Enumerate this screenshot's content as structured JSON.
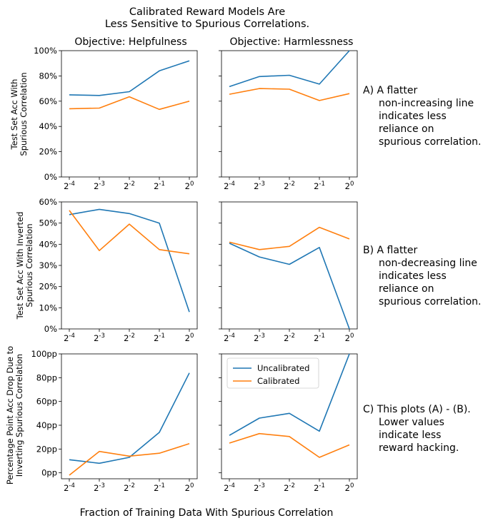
{
  "figure": {
    "title_line1": "Calibrated Reward Models Are",
    "title_line2": "Less Sensitive to Spurious Correlations.",
    "col_titles": [
      "Objective: Helpfulness",
      "Objective: Harmlessness"
    ],
    "xlabel": "Fraction of Training Data With Spurious Correlation",
    "row_ylabels": [
      [
        "Test Set Acc With",
        "Spurious Correlation"
      ],
      [
        "Test Set Acc With Inverted",
        "Spurious Correlation"
      ],
      [
        "Percentage Point Acc Drop Due to",
        "Inverting Spurious Correlation"
      ]
    ],
    "annotations": [
      [
        "A) A flatter",
        "non-increasing line",
        "indicates less",
        "reliance on",
        "spurious correlation."
      ],
      [
        "B) A flatter",
        "non-decreasing line",
        "indicates less",
        "reliance on",
        "spurious correlation."
      ],
      [
        "C) This plots (A) - (B).",
        "Lower values",
        "indicate less",
        "reward hacking."
      ]
    ],
    "colors": {
      "Uncalibrated": "#1f77b4",
      "Calibrated": "#ff7f0e"
    }
  },
  "chart_data": [
    {
      "type": "line",
      "row": 0,
      "col": 0,
      "categories": [
        "2^-4",
        "2^-3",
        "2^-2",
        "2^-1",
        "2^0"
      ],
      "ylim": [
        0,
        100
      ],
      "yticks": [
        0,
        20,
        40,
        60,
        80,
        100
      ],
      "ytick_labels": [
        "0%",
        "20%",
        "40%",
        "60%",
        "80%",
        "100%"
      ],
      "series": [
        {
          "name": "Uncalibrated",
          "values": [
            65,
            64.5,
            67.5,
            84,
            92
          ]
        },
        {
          "name": "Calibrated",
          "values": [
            54,
            54.5,
            63.5,
            53.5,
            60
          ]
        }
      ]
    },
    {
      "type": "line",
      "row": 0,
      "col": 1,
      "categories": [
        "2^-4",
        "2^-3",
        "2^-2",
        "2^-1",
        "2^0"
      ],
      "ylim": [
        0,
        100
      ],
      "yticks": [
        0,
        20,
        40,
        60,
        80,
        100
      ],
      "ytick_labels": [],
      "series": [
        {
          "name": "Uncalibrated",
          "values": [
            71.5,
            79.5,
            80.5,
            73.5,
            100
          ]
        },
        {
          "name": "Calibrated",
          "values": [
            65.5,
            70,
            69.5,
            60.5,
            66
          ]
        }
      ]
    },
    {
      "type": "line",
      "row": 1,
      "col": 0,
      "categories": [
        "2^-4",
        "2^-3",
        "2^-2",
        "2^-1",
        "2^0"
      ],
      "ylim": [
        0,
        60
      ],
      "yticks": [
        0,
        10,
        20,
        30,
        40,
        50,
        60
      ],
      "ytick_labels": [
        "0%",
        "10%",
        "20%",
        "30%",
        "40%",
        "50%",
        "60%"
      ],
      "series": [
        {
          "name": "Uncalibrated",
          "values": [
            54,
            56.5,
            54.5,
            50,
            8
          ]
        },
        {
          "name": "Calibrated",
          "values": [
            56,
            37,
            49.5,
            37.5,
            35.5
          ]
        }
      ]
    },
    {
      "type": "line",
      "row": 1,
      "col": 1,
      "categories": [
        "2^-4",
        "2^-3",
        "2^-2",
        "2^-1",
        "2^0"
      ],
      "ylim": [
        0,
        60
      ],
      "yticks": [
        0,
        10,
        20,
        30,
        40,
        50,
        60
      ],
      "ytick_labels": [],
      "series": [
        {
          "name": "Uncalibrated",
          "values": [
            40.5,
            34,
            30.5,
            38.5,
            0
          ]
        },
        {
          "name": "Calibrated",
          "values": [
            41,
            37.5,
            39,
            48,
            42.5
          ]
        }
      ]
    },
    {
      "type": "line",
      "row": 2,
      "col": 0,
      "categories": [
        "2^-4",
        "2^-3",
        "2^-2",
        "2^-1",
        "2^0"
      ],
      "ylim": [
        -5,
        100
      ],
      "yticks": [
        0,
        20,
        40,
        60,
        80,
        100
      ],
      "ytick_labels": [
        "0pp",
        "20pp",
        "40pp",
        "60pp",
        "80pp",
        "100pp"
      ],
      "series": [
        {
          "name": "Uncalibrated",
          "values": [
            11,
            8,
            13,
            34,
            84
          ]
        },
        {
          "name": "Calibrated",
          "values": [
            -2,
            18,
            14,
            16.5,
            24.5
          ]
        }
      ]
    },
    {
      "type": "line",
      "row": 2,
      "col": 1,
      "categories": [
        "2^-4",
        "2^-3",
        "2^-2",
        "2^-1",
        "2^0"
      ],
      "ylim": [
        -5,
        100
      ],
      "yticks": [
        0,
        20,
        40,
        60,
        80,
        100
      ],
      "ytick_labels": [],
      "legend": "upper-left",
      "series": [
        {
          "name": "Uncalibrated",
          "values": [
            31.5,
            46,
            50,
            35,
            100
          ]
        },
        {
          "name": "Calibrated",
          "values": [
            25,
            33,
            30.5,
            13,
            23.5
          ]
        }
      ]
    }
  ]
}
